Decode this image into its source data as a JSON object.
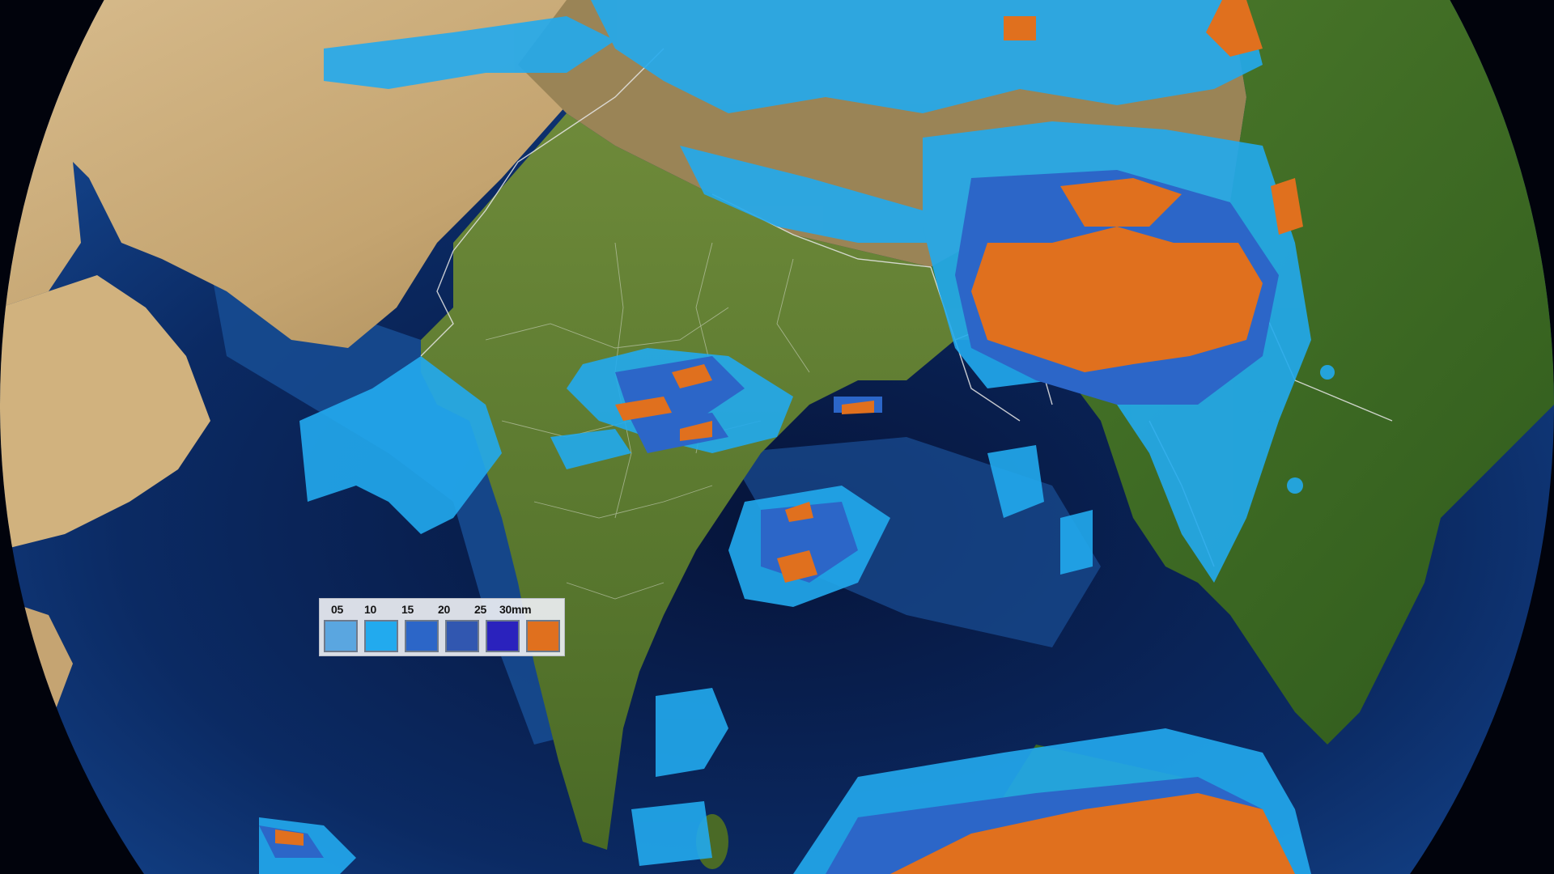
{
  "legend": {
    "labels": [
      "05",
      "10",
      "15",
      "20",
      "25",
      "30mm"
    ],
    "swatches": [
      {
        "value": "05",
        "color": "#5aa6e0"
      },
      {
        "value": "10",
        "color": "#22aaee"
      },
      {
        "value": "15",
        "color": "#2c66c8"
      },
      {
        "value": "20",
        "color": "#3157b0"
      },
      {
        "value": "25",
        "color": "#2a22bd"
      },
      {
        "value": "30",
        "color": "#e0701e"
      }
    ]
  },
  "colors": {
    "ocean_deep": "#061a44",
    "ocean_shelf": "#1c5aa0",
    "desert": "#c9ad7c",
    "vegetation": "#5a7a2c",
    "border_lines": "#e6e6e6"
  }
}
